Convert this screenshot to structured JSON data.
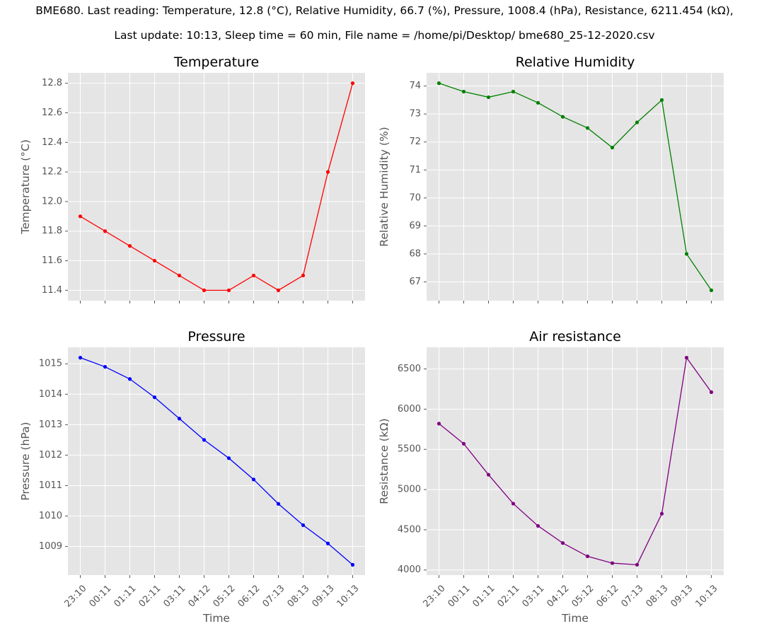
{
  "suptitle": {
    "line1": "BME680. Last reading: Temperature, 12.8 (°C), Relative Humidity, 66.7 (%), Pressure, 1008.4 (hPa), Resistance, 6211.454 (kΩ),",
    "line2": "Last update: 10:13, Sleep time = 60 min, File name = /home/pi/Desktop/ bme680_25-12-2020.csv"
  },
  "chart_data": [
    {
      "type": "line",
      "title": "Temperature",
      "xlabel": "",
      "ylabel": "Temperature (°C)",
      "categories": [
        "23:10",
        "00:11",
        "01:11",
        "02:11",
        "03:11",
        "04:12",
        "05:12",
        "06:12",
        "07:13",
        "08:13",
        "09:13",
        "10:13"
      ],
      "series": [
        {
          "values": [
            11.9,
            11.8,
            11.7,
            11.6,
            11.5,
            11.4,
            11.4,
            11.5,
            11.4,
            11.5,
            12.2,
            12.8
          ],
          "color": "#ff0000"
        }
      ],
      "yticks": [
        11.4,
        11.6,
        11.8,
        12.0,
        12.2,
        12.4,
        12.6,
        12.8
      ],
      "ytick_labels": [
        "11.4",
        "11.6",
        "11.8",
        "12.0",
        "12.2",
        "12.4",
        "12.6",
        "12.8"
      ],
      "ylim": [
        11.33,
        12.87
      ],
      "show_xtick_labels": false,
      "grid": true
    },
    {
      "type": "line",
      "title": "Relative Humidity",
      "xlabel": "",
      "ylabel": "Relative Humidity (%)",
      "categories": [
        "23:10",
        "00:11",
        "01:11",
        "02:11",
        "03:11",
        "04:12",
        "05:12",
        "06:12",
        "07:13",
        "08:13",
        "09:13",
        "10:13"
      ],
      "series": [
        {
          "values": [
            74.1,
            73.8,
            73.6,
            73.8,
            73.4,
            72.9,
            72.5,
            71.8,
            72.7,
            73.5,
            68.0,
            66.7
          ],
          "color": "#008000"
        }
      ],
      "yticks": [
        67,
        68,
        69,
        70,
        71,
        72,
        73,
        74
      ],
      "ytick_labels": [
        "67",
        "68",
        "69",
        "70",
        "71",
        "72",
        "73",
        "74"
      ],
      "ylim": [
        66.33,
        74.47
      ],
      "show_xtick_labels": false,
      "grid": true
    },
    {
      "type": "line",
      "title": "Pressure",
      "xlabel": "Time",
      "ylabel": "Pressure (hPa)",
      "categories": [
        "23:10",
        "00:11",
        "01:11",
        "02:11",
        "03:11",
        "04:12",
        "05:12",
        "06:12",
        "07:13",
        "08:13",
        "09:13",
        "10:13"
      ],
      "series": [
        {
          "values": [
            1015.2,
            1014.9,
            1014.5,
            1013.9,
            1013.2,
            1012.5,
            1011.9,
            1011.2,
            1010.4,
            1009.7,
            1009.1,
            1008.4
          ],
          "color": "#0000ff"
        }
      ],
      "yticks": [
        1009,
        1010,
        1011,
        1012,
        1013,
        1014,
        1015
      ],
      "ytick_labels": [
        "1009",
        "1010",
        "1011",
        "1012",
        "1013",
        "1014",
        "1015"
      ],
      "ylim": [
        1008.06,
        1015.54
      ],
      "show_xtick_labels": true,
      "grid": true
    },
    {
      "type": "line",
      "title": "Air resistance",
      "xlabel": "Time",
      "ylabel": "Resistance (kΩ)",
      "categories": [
        "23:10",
        "00:11",
        "01:11",
        "02:11",
        "03:11",
        "04:12",
        "05:12",
        "06:12",
        "07:13",
        "08:13",
        "09:13",
        "10:13"
      ],
      "series": [
        {
          "values": [
            5820,
            5570,
            5185,
            4825,
            4548,
            4335,
            4170,
            4085,
            4065,
            4700,
            6640,
            6211.454
          ],
          "color": "#800080"
        }
      ],
      "yticks": [
        4000,
        4500,
        5000,
        5500,
        6000,
        6500
      ],
      "ytick_labels": [
        "4000",
        "4500",
        "5000",
        "5500",
        "6000",
        "6500"
      ],
      "ylim": [
        3936,
        6769
      ],
      "show_xtick_labels": true,
      "grid": true
    }
  ]
}
